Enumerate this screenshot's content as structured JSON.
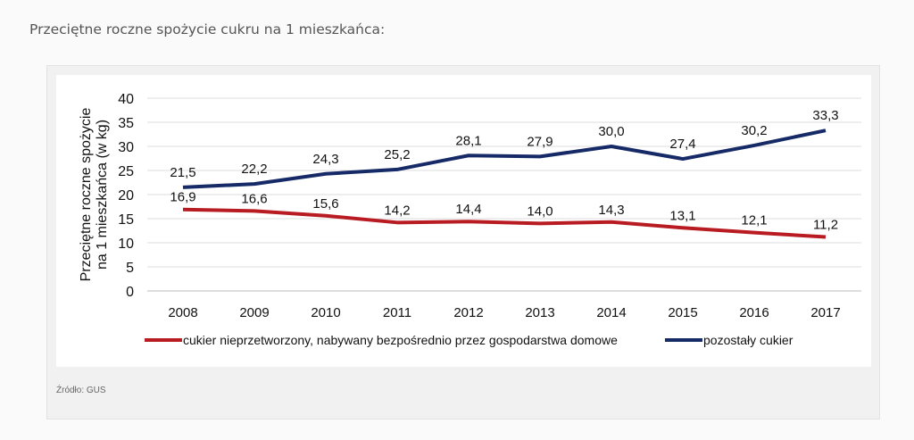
{
  "page_title": "Przeciętne roczne spożycie cukru na 1 mieszkańca:",
  "source": "Źródło: GUS",
  "chart_data": {
    "type": "line",
    "categories": [
      "2008",
      "2009",
      "2010",
      "2011",
      "2012",
      "2013",
      "2014",
      "2015",
      "2016",
      "2017"
    ],
    "ylabel": "Przeciętne roczne spożycie na 1 mieszkańca (w kg)",
    "ylabel_lines": [
      "Przeciętne roczne spożycie",
      "na 1 mieszkańca (w kg)"
    ],
    "ylim": [
      0,
      40
    ],
    "yticks": [
      0,
      5,
      10,
      15,
      20,
      25,
      30,
      35,
      40
    ],
    "grid": true,
    "legend": "bottom",
    "series": [
      {
        "name": "cukier nieprzetworzony, nabywany bezpośrednio przez gospodarstwa domowe",
        "color": "#b81c22",
        "values": [
          16.9,
          16.6,
          15.6,
          14.2,
          14.4,
          14.0,
          14.3,
          13.1,
          12.1,
          11.2
        ],
        "labels": [
          "16,9",
          "16,6",
          "15,6",
          "14,2",
          "14,4",
          "14,0",
          "14,3",
          "13,1",
          "12,1",
          "11,2"
        ]
      },
      {
        "name": "pozostały cukier",
        "color": "#152a66",
        "values": [
          21.5,
          22.2,
          24.3,
          25.2,
          28.1,
          27.9,
          30.0,
          27.4,
          30.2,
          33.3
        ],
        "labels": [
          "21,5",
          "22,2",
          "24,3",
          "25,2",
          "28,1",
          "27,9",
          "30,0",
          "27,4",
          "30,2",
          "33,3"
        ]
      }
    ]
  }
}
